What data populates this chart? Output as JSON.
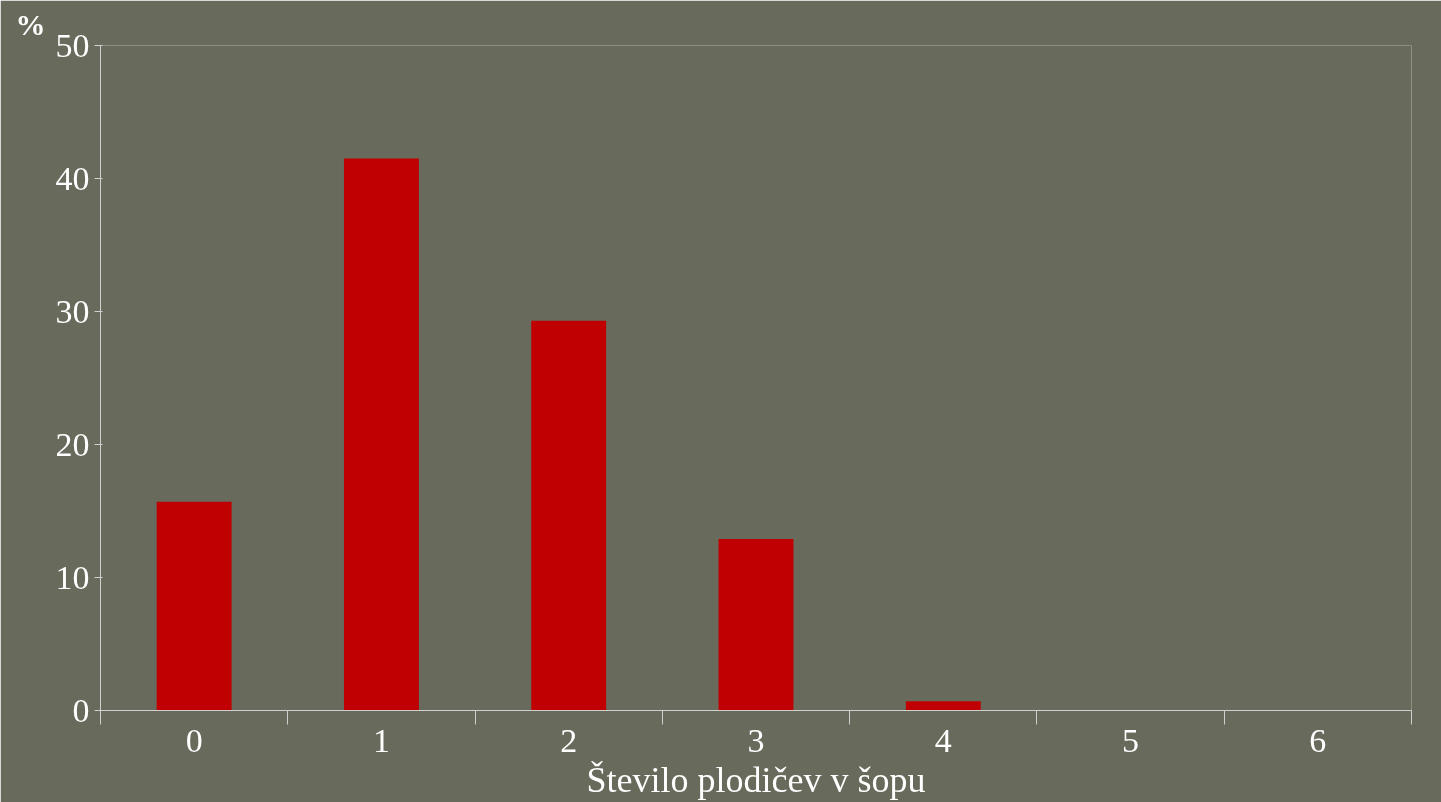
{
  "chart_data": {
    "type": "bar",
    "xlabel": "Število plodičev v šopu",
    "ylabel": "%",
    "categories": [
      "0",
      "1",
      "2",
      "3",
      "4",
      "5",
      "6"
    ],
    "values": [
      15.7,
      41.5,
      29.3,
      12.9,
      0.7,
      0,
      0
    ],
    "color": "#c00000",
    "ylim": [
      0,
      50
    ],
    "yticks": [
      0,
      10,
      20,
      30,
      40,
      50
    ],
    "grid": false
  }
}
